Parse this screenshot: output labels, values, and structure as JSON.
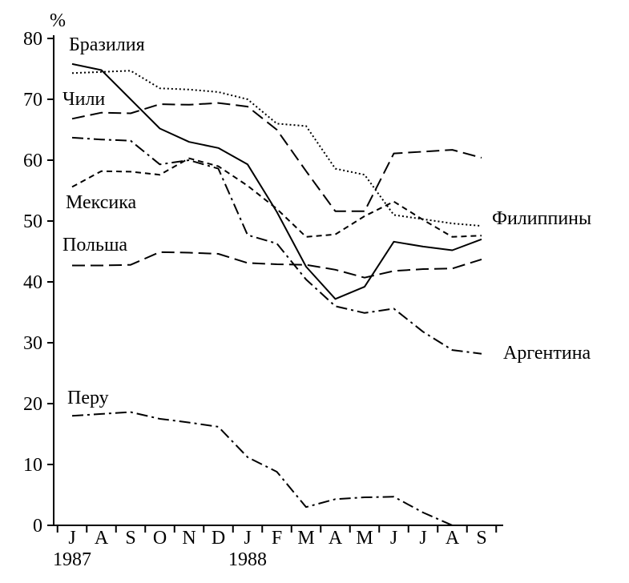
{
  "chart_data": {
    "type": "line",
    "title": "",
    "xlabel": "",
    "ylabel": "%",
    "ylim": [
      0,
      80
    ],
    "yticks": [
      0,
      10,
      20,
      30,
      40,
      50,
      60,
      70,
      80
    ],
    "grid": false,
    "categories": [
      "J",
      "A",
      "S",
      "O",
      "N",
      "D",
      "J",
      "F",
      "M",
      "A",
      "M",
      "J",
      "J",
      "A",
      "S"
    ],
    "year_labels": [
      {
        "label": "1987",
        "category_index": 0
      },
      {
        "label": "1988",
        "category_index": 6
      }
    ],
    "series": [
      {
        "name": "Бразилия",
        "style": "solid",
        "values": [
          75.8,
          74.8,
          70,
          65.2,
          63,
          62,
          59.3,
          51.5,
          42.5,
          37.2,
          39.2,
          46.6,
          45.8,
          45.2,
          47
        ]
      },
      {
        "name": "Филиппины",
        "style": "dotted",
        "values": [
          74.3,
          74.5,
          74.7,
          71.8,
          71.6,
          71.2,
          70,
          66,
          65.6,
          58.6,
          57.6,
          51,
          50.3,
          49.6,
          49.2
        ]
      },
      {
        "name": "Чили",
        "style": "long-dash",
        "values": [
          66.8,
          67.8,
          67.7,
          69.2,
          69.1,
          69.4,
          68.8,
          65,
          58.2,
          51.6,
          51.6,
          61.1,
          61.4,
          61.7,
          60.4
        ]
      },
      {
        "name": "Мексика",
        "style": "short-dash",
        "values": [
          55.6,
          58.2,
          58.1,
          57.6,
          60.3,
          59,
          55.8,
          52,
          47.4,
          47.8,
          50.8,
          53.2,
          50.2,
          47.4,
          47.6
        ]
      },
      {
        "name": "Польша",
        "style": "long-dash",
        "values": [
          42.7,
          42.7,
          42.8,
          44.9,
          44.8,
          44.6,
          43.1,
          42.9,
          42.8,
          42,
          40.7,
          41.8,
          42.1,
          42.2,
          43.7
        ]
      },
      {
        "name": "Аргентина",
        "style": "dash-dot",
        "values": [
          63.7,
          63.4,
          63.2,
          59.3,
          60,
          58.6,
          47.7,
          46.3,
          40.4,
          36,
          34.9,
          35.6,
          31.8,
          28.8,
          28.2
        ]
      },
      {
        "name": "Перу",
        "style": "dash-dot",
        "values": [
          18,
          18.3,
          18.6,
          17.5,
          16.9,
          16.2,
          11.2,
          8.8,
          3,
          4.3,
          4.6,
          4.7,
          2.1,
          0,
          null
        ]
      }
    ]
  }
}
